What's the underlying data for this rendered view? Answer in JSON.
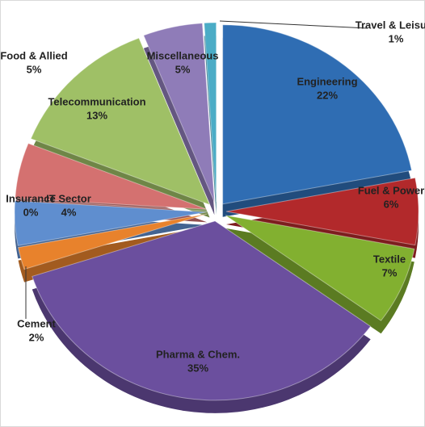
{
  "chart_data": {
    "type": "pie",
    "categories": [
      "Engineering",
      "Fuel & Power",
      "Textile",
      "Pharma & Chem.",
      "Cement",
      "IT Sector",
      "Insurance",
      "Food & Allied",
      "Telecommunication",
      "Miscellaneous",
      "Travel & Leisure"
    ],
    "values": [
      22,
      6,
      7,
      35,
      2,
      4,
      0,
      5,
      13,
      5,
      1
    ],
    "value_labels": [
      "22%",
      "6%",
      "7%",
      "35%",
      "2%",
      "4%",
      "0%",
      "5%",
      "13%",
      "5%",
      "1%"
    ],
    "colors": [
      "#2f6db3",
      "#b2292b",
      "#82b030",
      "#6b4f9e",
      "#e8822c",
      "#5f8ecf",
      "#9db9e0",
      "#d47170",
      "#9fc066",
      "#8f7cb8",
      "#4bacc6"
    ]
  }
}
